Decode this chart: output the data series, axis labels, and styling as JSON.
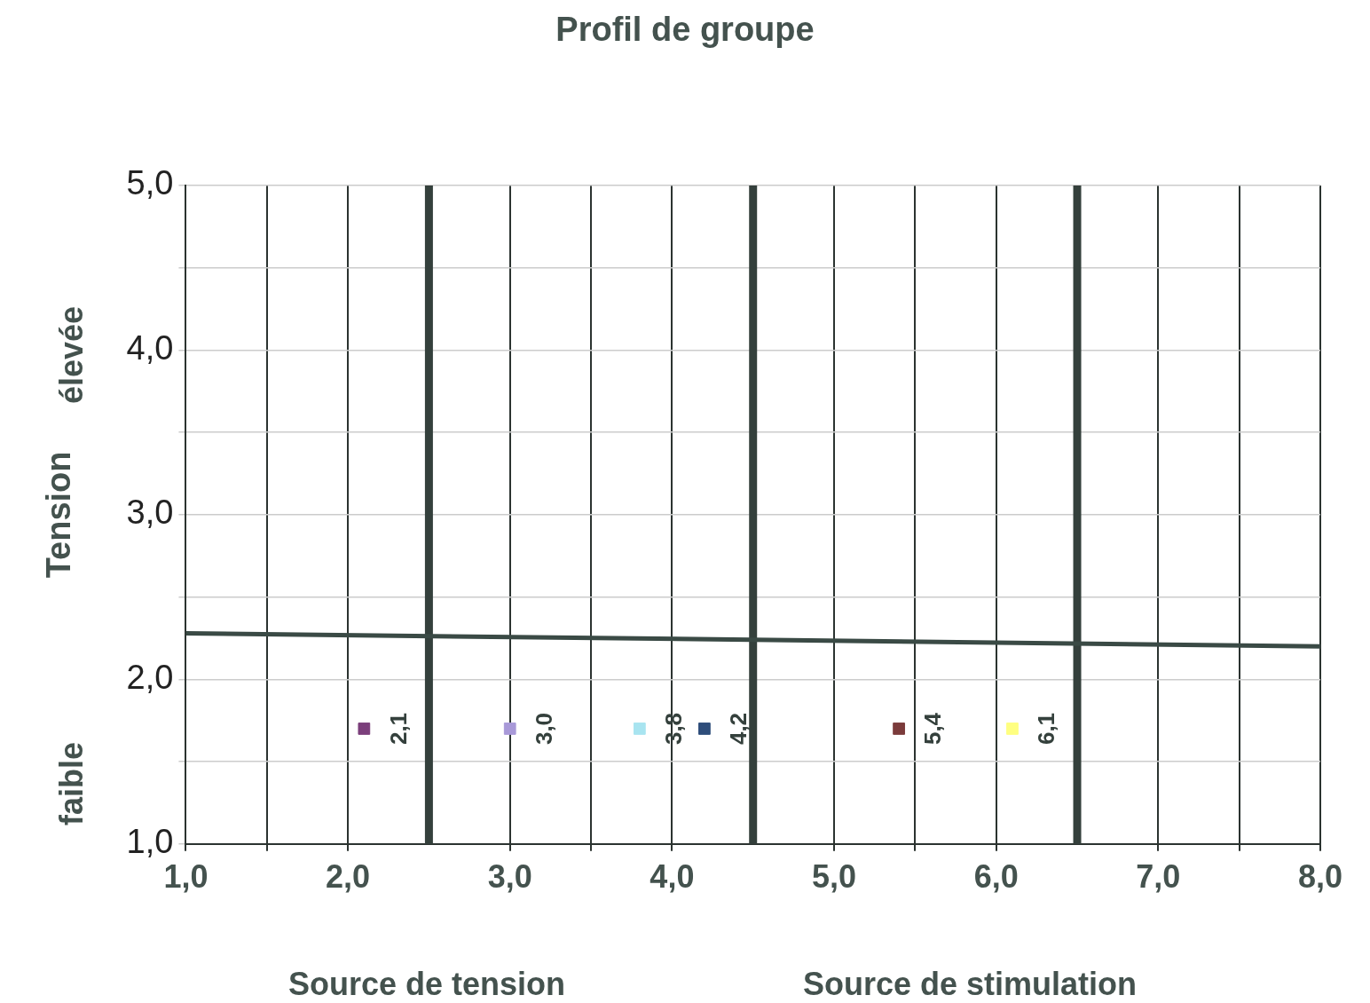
{
  "chart_data": {
    "type": "scatter",
    "title": "Profil de groupe",
    "ylabel": "Tension",
    "annotations": [
      "Source de tension",
      "Source de stimulation",
      "faible",
      "élevée",
      {
        "text": "2,1",
        "x": 2.1,
        "y": 1.7
      },
      {
        "text": "3,0",
        "x": 3.0,
        "y": 1.7
      },
      {
        "text": "3,8",
        "x": 3.8,
        "y": 1.7
      },
      {
        "text": "4,2",
        "x": 4.2,
        "y": 1.7
      },
      {
        "text": "5,4",
        "x": 5.4,
        "y": 1.7
      },
      {
        "text": "6,1",
        "x": 6.1,
        "y": 1.7
      }
    ],
    "series": [
      {
        "x": [
          2.1,
          3.0,
          3.8,
          4.2,
          5.4,
          6.1
        ],
        "values": [
          1.7,
          1.7,
          1.7,
          1.7,
          1.7,
          1.7
        ],
        "colors": [
          "#7b3f7b",
          "#a899d8",
          "#a8e4f0",
          "#2e4d7a",
          "#7b3b3b",
          "#ffff80"
        ],
        "marker": "square"
      },
      {
        "type": "line",
        "x": [
          1,
          8
        ],
        "values": [
          2.28,
          2.2
        ],
        "color": "#3a4a45"
      }
    ],
    "xlim": [
      1,
      8
    ],
    "xticks": [
      {
        "value": 1,
        "label": "1,0"
      },
      {
        "value": 1.5,
        "label": null
      },
      {
        "value": 2,
        "label": "2,0"
      },
      {
        "value": 3,
        "label": "3,0"
      },
      {
        "value": 3.5,
        "label": null
      },
      {
        "value": 4,
        "label": "4,0"
      },
      {
        "value": 5,
        "label": "5,0"
      },
      {
        "value": 5.5,
        "label": null
      },
      {
        "value": 6,
        "label": "6,0"
      },
      {
        "value": 7,
        "label": "7,0"
      },
      {
        "value": 7.5,
        "label": null
      },
      {
        "value": 8,
        "label": "8,0"
      }
    ],
    "ylim": [
      1,
      5
    ],
    "yticks": [
      {
        "value": 1,
        "label": "1,0"
      },
      {
        "value": 1.5,
        "label": null
      },
      {
        "value": 2,
        "label": "2,0"
      },
      {
        "value": 2.5,
        "label": null
      },
      {
        "value": 3,
        "label": "3,0"
      },
      {
        "value": 3.5,
        "label": null
      },
      {
        "value": 4,
        "label": "4,0"
      },
      {
        "value": 4.5,
        "label": null
      },
      {
        "value": 5,
        "label": "5,0"
      }
    ],
    "ref_lines": [
      {
        "axis": "x",
        "value": 2.5,
        "color": "#34403c"
      },
      {
        "axis": "x",
        "value": 4.5,
        "color": "#34403c"
      },
      {
        "axis": "x",
        "value": 6.5,
        "color": "#34403c"
      }
    ],
    "grid": true,
    "legend": false
  }
}
